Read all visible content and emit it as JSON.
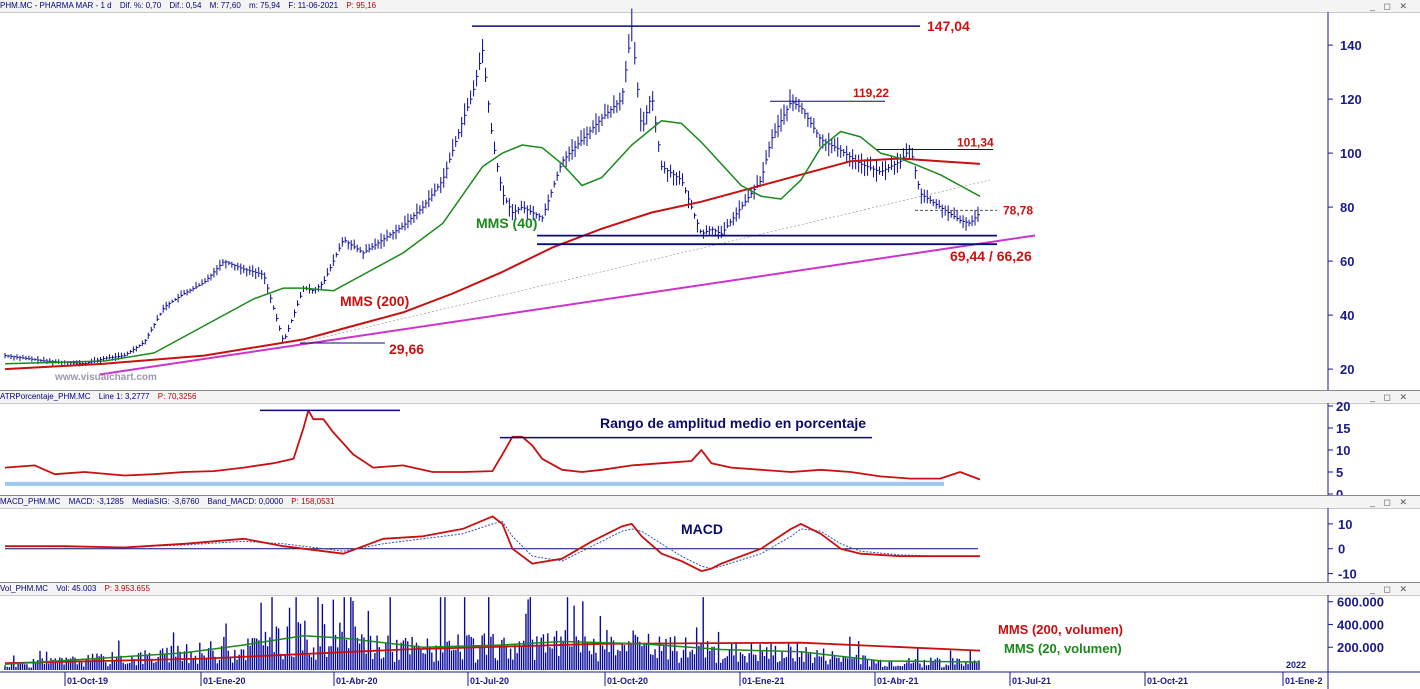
{
  "panels": {
    "price": {
      "header": [
        "PHM.MC - PHARMA MAR - 1 d",
        "Dif. %: 0,70",
        "Dif.: 0,54",
        "M: 77,60",
        "m: 75,94",
        "F: 11-06-2021",
        "P: 95,16"
      ],
      "watermark": "www.visualchart.com"
    },
    "atr": {
      "header": [
        "ATRPorcentaje_PHM.MC",
        "Line 1: 3,2777",
        "P: 70,3256"
      ]
    },
    "macd": {
      "header": [
        "MACD_PHM.MC",
        "MACD: -3,1285",
        "MediaSIG: -3,6760",
        "Band_MACD: 0,0000",
        "P: 158,0531"
      ]
    },
    "vol": {
      "header": [
        "Vol_PHM.MC",
        "Vol: 45.003",
        "P: 3.953.655"
      ]
    }
  },
  "window_controls": "_ ◻ ✕",
  "annotations": {
    "high": "147,04",
    "mid_high": "119,22",
    "recent_high": "101,34",
    "current": "78,78",
    "support": "69,44 / 66,26",
    "low": "29,66",
    "mms40": "MMS (40)",
    "mms200": "MMS (200)",
    "atr_title": "Rango de amplitud medio en porcentaje",
    "macd_title": "MACD",
    "vol_mms200": "MMS (200, volumen)",
    "vol_mms20": "MMS (20, volumen)",
    "year_marker": "2022"
  },
  "colors": {
    "price": "#0a0a9a",
    "mms40": "#1a8a1a",
    "mms200": "#c81010",
    "trend": "#cc33cc",
    "level": "#0a0a7a",
    "annotation_red": "#d01010",
    "atr_band": "#9ac8ee",
    "macd_sig": "#3050c0"
  },
  "chart_data": [
    {
      "type": "line",
      "title": "PHM.MC - PHARMA MAR - 1 d",
      "x_ticks": [
        "01-Oct-19",
        "01-Ene-20",
        "01-Abr-20",
        "01-Jul-20",
        "01-Oct-20",
        "01-Ene-21",
        "01-Abr-21",
        "01-Jul-21",
        "01-Oct-21",
        "01-Ene-2"
      ],
      "y_ticks": [
        20,
        40,
        60,
        80,
        100,
        120,
        140
      ],
      "ylim": [
        13,
        153
      ],
      "series": [
        {
          "name": "PHM.MC",
          "x": [
            0,
            40,
            80,
            100,
            120,
            140,
            160,
            180,
            200,
            220,
            240,
            260,
            280,
            300,
            310,
            320,
            340,
            360,
            380,
            400,
            420,
            440,
            460,
            470,
            480,
            490,
            500,
            510,
            520,
            540,
            560,
            580,
            600,
            620,
            630,
            640,
            650,
            660,
            680,
            700,
            710,
            720,
            740,
            760,
            770,
            780,
            790,
            800,
            820,
            840,
            860,
            880,
            900,
            910,
            920,
            940,
            960,
            970,
            980
          ],
          "y": [
            25,
            23,
            22,
            24,
            25,
            30,
            43,
            48,
            52,
            60,
            57,
            55,
            30,
            50,
            49,
            52,
            68,
            63,
            68,
            73,
            80,
            90,
            112,
            122,
            138,
            105,
            85,
            78,
            80,
            76,
            97,
            105,
            113,
            120,
            147,
            108,
            122,
            95,
            90,
            70,
            72,
            70,
            80,
            90,
            105,
            112,
            119,
            117,
            105,
            101,
            96,
            93,
            97,
            102,
            85,
            80,
            75,
            74,
            78
          ]
        },
        {
          "name": "MMS (40)",
          "x": [
            0,
            100,
            150,
            200,
            250,
            280,
            300,
            330,
            360,
            400,
            440,
            480,
            500,
            520,
            540,
            560,
            580,
            600,
            630,
            660,
            680,
            700,
            720,
            740,
            760,
            780,
            800,
            820,
            840,
            860,
            880,
            900,
            920,
            940,
            960,
            980
          ],
          "y": [
            22,
            23,
            26,
            36,
            46,
            50,
            50,
            49,
            55,
            63,
            74,
            95,
            100,
            103,
            102,
            96,
            88,
            91,
            103,
            112,
            111,
            104,
            96,
            88,
            84,
            83,
            90,
            102,
            108,
            106,
            100,
            98,
            95,
            92,
            88,
            84
          ]
        },
        {
          "name": "MMS (200)",
          "x": [
            0,
            100,
            200,
            300,
            350,
            400,
            450,
            500,
            550,
            600,
            650,
            700,
            750,
            800,
            850,
            900,
            940,
            980
          ],
          "y": [
            20,
            22,
            25,
            31,
            36,
            41,
            48,
            56,
            65,
            72,
            78,
            82,
            87,
            92,
            97,
            98,
            97,
            96
          ]
        }
      ],
      "levels": [
        147.04,
        119.22,
        101.34,
        78.78,
        69.44,
        66.26,
        29.66
      ]
    },
    {
      "type": "line",
      "title": "ATRPorcentaje_PHM.MC",
      "y_ticks": [
        0,
        5,
        10,
        15,
        20
      ],
      "ylim": [
        0,
        20
      ],
      "series": [
        {
          "name": "Line 1",
          "x": [
            0,
            30,
            50,
            80,
            120,
            150,
            180,
            210,
            240,
            270,
            290,
            300,
            305,
            310,
            320,
            330,
            350,
            370,
            400,
            430,
            460,
            490,
            500,
            510,
            520,
            530,
            540,
            560,
            580,
            600,
            630,
            660,
            690,
            700,
            710,
            730,
            760,
            790,
            820,
            850,
            880,
            910,
            940,
            960,
            980
          ],
          "y": [
            6,
            6.5,
            4.5,
            5,
            4.2,
            4.5,
            5,
            5.2,
            6,
            7,
            8,
            15,
            19,
            17,
            17,
            14,
            9,
            6,
            6.5,
            5,
            5,
            5.2,
            9,
            13,
            13,
            11,
            8,
            5.5,
            5,
            5.5,
            6.5,
            7,
            7.5,
            10,
            7,
            6,
            5.5,
            5,
            5.5,
            5,
            4,
            3.5,
            3.5,
            5,
            3.3
          ]
        }
      ]
    },
    {
      "type": "line",
      "title": "MACD_PHM.MC",
      "y_ticks": [
        -10,
        0,
        10
      ],
      "ylim": [
        -13,
        16
      ],
      "series": [
        {
          "name": "MACD",
          "x": [
            0,
            60,
            120,
            180,
            240,
            280,
            300,
            340,
            380,
            420,
            460,
            490,
            500,
            510,
            530,
            560,
            590,
            620,
            630,
            640,
            660,
            680,
            700,
            710,
            720,
            760,
            790,
            800,
            820,
            840,
            860,
            900,
            940,
            980
          ],
          "y": [
            1,
            1,
            0.5,
            2,
            4,
            1,
            0,
            -2,
            4,
            5,
            8,
            13,
            10,
            0,
            -6,
            -4,
            3,
            9,
            10,
            5,
            -2,
            -5,
            -9,
            -8,
            -6,
            0,
            8,
            10,
            6,
            0,
            -2,
            -3,
            -3,
            -3
          ]
        },
        {
          "name": "MediaSIG",
          "x": [
            0,
            60,
            120,
            180,
            240,
            280,
            300,
            340,
            380,
            420,
            460,
            490,
            500,
            510,
            530,
            560,
            590,
            620,
            630,
            640,
            660,
            680,
            700,
            710,
            720,
            760,
            790,
            800,
            820,
            840,
            860,
            900,
            940,
            980
          ],
          "y": [
            1,
            0.8,
            0.6,
            1.5,
            3,
            2,
            1,
            -1,
            2,
            4,
            6,
            10,
            11,
            5,
            -3,
            -5,
            1,
            7,
            8,
            7,
            2,
            -3,
            -7,
            -8,
            -7,
            -2,
            5,
            8,
            7,
            2,
            -1,
            -2.5,
            -3,
            -3
          ]
        }
      ],
      "band": 0
    },
    {
      "type": "bar",
      "title": "Vol_PHM.MC",
      "y_ticks": [
        200000,
        400000,
        600000
      ],
      "ylim": [
        0,
        650000
      ],
      "series": [
        {
          "name": "MMS (200, volumen)",
          "x": [
            0,
            200,
            400,
            600,
            800,
            980
          ],
          "y": [
            60000,
            100000,
            180000,
            230000,
            240000,
            170000
          ]
        },
        {
          "name": "MMS (20, volumen)",
          "x": [
            0,
            180,
            240,
            300,
            340,
            420,
            500,
            560,
            640,
            720,
            800,
            880,
            980
          ],
          "y": [
            50000,
            150000,
            220000,
            300000,
            280000,
            200000,
            220000,
            250000,
            230000,
            180000,
            160000,
            80000,
            70000
          ]
        }
      ]
    }
  ]
}
